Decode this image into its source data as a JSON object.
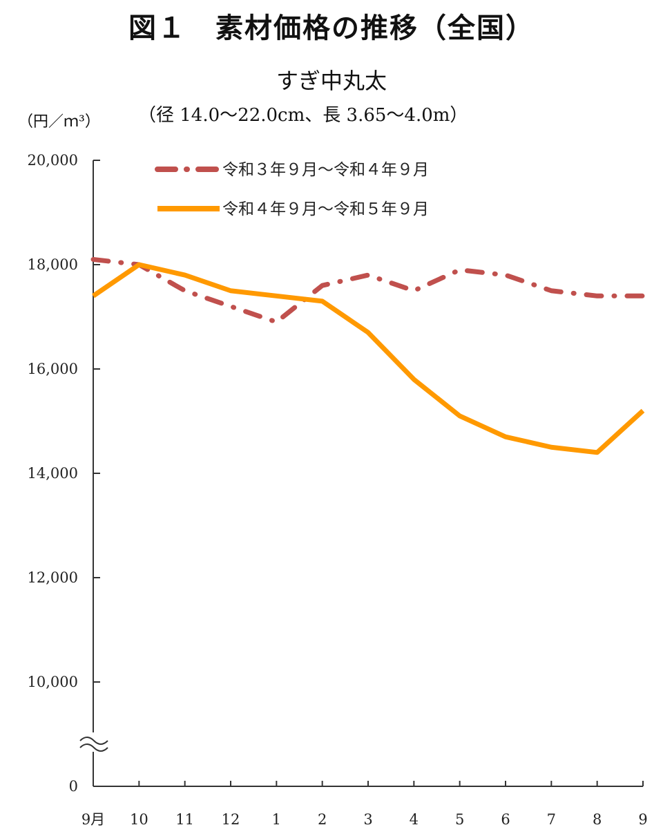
{
  "title": "図１　素材価格の推移（全国）",
  "subtitle": "すぎ中丸太",
  "spec": "（径 14.0～22.0cm、長 3.65～4.0m）",
  "unit": "（円／ｍ³）",
  "colors": {
    "series1": "#c0504d",
    "series2": "#ff9900",
    "axis": "#333333"
  },
  "chart_data": {
    "type": "line",
    "title": "図１　素材価格の推移（全国）",
    "subtitle": "すぎ中丸太",
    "ylabel": "（円／ｍ³）",
    "xlabel": "",
    "categories": [
      "9月",
      "10",
      "11",
      "12",
      "1",
      "2",
      "3",
      "4",
      "5",
      "6",
      "7",
      "8",
      "9"
    ],
    "yticks": [
      0,
      10000,
      12000,
      14000,
      16000,
      18000,
      20000
    ],
    "ytick_labels": [
      "0",
      "10,000",
      "12,000",
      "14,000",
      "16,000",
      "18,000",
      "20,000"
    ],
    "ylim": [
      0,
      20000
    ],
    "axis_break": [
      0,
      10000
    ],
    "grid": false,
    "legend_position": "top-right",
    "series": [
      {
        "name": "令和３年９月～令和４年９月",
        "style": "dash-dot",
        "values": [
          18100,
          18000,
          17500,
          17200,
          16900,
          17600,
          17800,
          17500,
          17900,
          17800,
          17500,
          17400,
          17400
        ]
      },
      {
        "name": "令和４年９月～令和５年９月",
        "style": "solid",
        "values": [
          17400,
          18000,
          17800,
          17500,
          17400,
          17300,
          16700,
          15800,
          15100,
          14700,
          14500,
          14400,
          15200
        ]
      }
    ]
  }
}
